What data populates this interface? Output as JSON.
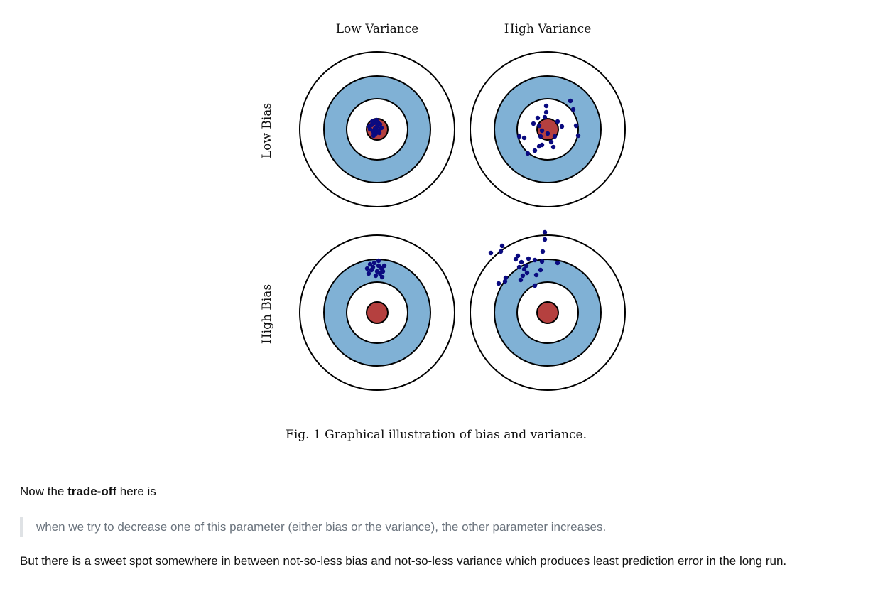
{
  "figure": {
    "col_labels": [
      "Low Variance",
      "High Variance"
    ],
    "row_labels": [
      "Low Bias",
      "High Bias"
    ],
    "caption": "Fig. 1 Graphical illustration of bias and variance.",
    "colors": {
      "ring_blue": "#80b1d5",
      "bullseye_red": "#b5403f",
      "dot_navy": "#0a0a80",
      "ring_line": "#000000"
    }
  },
  "text": {
    "p1_before": "Now the ",
    "p1_bold": "trade-off",
    "p1_after": " here is",
    "quote": "when we try to decrease one of this parameter (either bias or the variance), the other parameter increases.",
    "p2": "But there is a sweet spot somewhere in between not-so-less bias and not-so-less variance which produces least prediction error in the long run."
  }
}
